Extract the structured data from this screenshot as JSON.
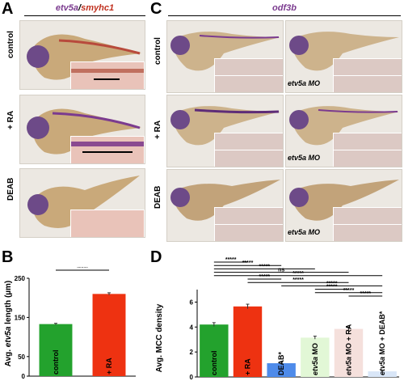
{
  "panels": {
    "A": {
      "letter": "A",
      "probe_a": "etv5a",
      "probe_sep": "/",
      "probe_b": "smyhc1"
    },
    "C": {
      "letter": "C",
      "probe": "odf3b",
      "mo_label": "etv5a MO"
    },
    "B": {
      "letter": "B"
    },
    "D": {
      "letter": "D"
    }
  },
  "row_labels": {
    "control": "control",
    "ra": "+ RA",
    "deab": "DEAB"
  },
  "colors": {
    "green": "#23a22d",
    "red": "#ee3211",
    "blue": "#4e8bea",
    "lightgreen": "#e2f7d6",
    "pink": "#f5e0dc",
    "lightblue": "#d9e6f7",
    "probe_purple": "#7b3b8f",
    "probe_red": "#c0301f"
  },
  "chart_data": [
    {
      "type": "bar",
      "ylabel_prefix": "Avg. ",
      "ylabel_italic": "etv5a",
      "ylabel_suffix": " length (µm)",
      "ylim": [
        0,
        250
      ],
      "yticks": [
        0,
        50,
        150,
        250
      ],
      "categories": [
        "control",
        "+ RA"
      ],
      "values": [
        133,
        210
      ],
      "errors": [
        2,
        3
      ],
      "bar_colors": [
        "#23a22d",
        "#ee3211"
      ],
      "significance": [
        {
          "from": 0,
          "to": 1,
          "label": "*****"
        }
      ]
    },
    {
      "type": "bar",
      "ylabel": "Avg. MCC density",
      "ylim": [
        0,
        7
      ],
      "yticks": [
        0,
        2,
        4,
        6
      ],
      "categories": [
        "control",
        "+ RA",
        "DEAB*",
        "etv5a MO",
        "etv5a MO + RA",
        "etv5a MO + DEAB*"
      ],
      "values": [
        4.2,
        5.65,
        1.1,
        3.15,
        3.85,
        0.45
      ],
      "errors": [
        0.15,
        0.18,
        0.12,
        0.12,
        0.15,
        0.08
      ],
      "bar_colors": [
        "#23a22d",
        "#ee3211",
        "#4e8bea",
        "#e2f7d6",
        "#f5e0dc",
        "#d9e6f7"
      ],
      "significance": [
        {
          "from": 0,
          "to": 1,
          "label": "*****"
        },
        {
          "from": 0,
          "to": 2,
          "label": "*****"
        },
        {
          "from": 0,
          "to": 3,
          "label": "*****"
        },
        {
          "from": 0,
          "to": 4,
          "label": "ns"
        },
        {
          "from": 0,
          "to": 5,
          "label": "*****"
        },
        {
          "from": 1,
          "to": 2,
          "label": "*****"
        },
        {
          "from": 1,
          "to": 4,
          "label": "*****"
        },
        {
          "from": 2,
          "to": 5,
          "label": "*****"
        },
        {
          "from": 3,
          "to": 4,
          "label": "*****"
        },
        {
          "from": 3,
          "to": 5,
          "label": "*****"
        },
        {
          "from": 4,
          "to": 5,
          "label": "*****"
        }
      ]
    }
  ]
}
